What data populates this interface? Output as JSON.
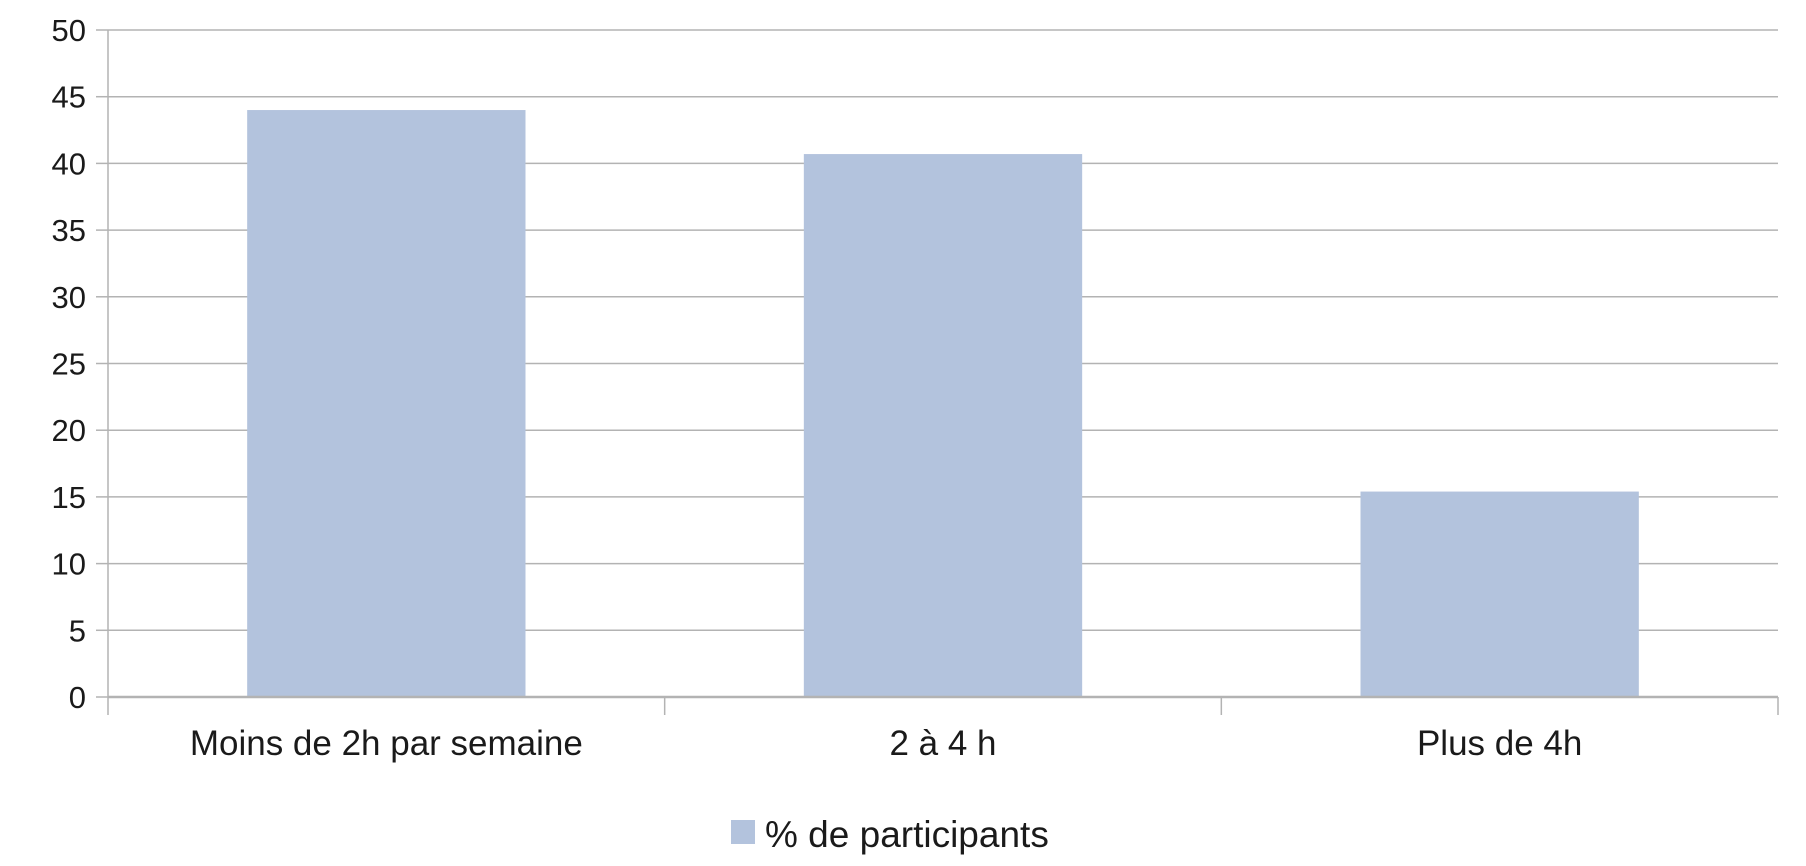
{
  "chart_data": {
    "type": "bar",
    "categories": [
      "Moins de 2h par semaine",
      "2 à 4 h",
      "Plus de 4h"
    ],
    "series": [
      {
        "name": "% de participants",
        "values": [
          44,
          40.7,
          15.4
        ],
        "color": "#b3c3dd"
      }
    ],
    "ylim": [
      0,
      50
    ],
    "yticks": [
      0,
      5,
      10,
      15,
      20,
      25,
      30,
      35,
      40,
      45,
      50
    ],
    "grid": true,
    "legend_position": "bottom"
  }
}
